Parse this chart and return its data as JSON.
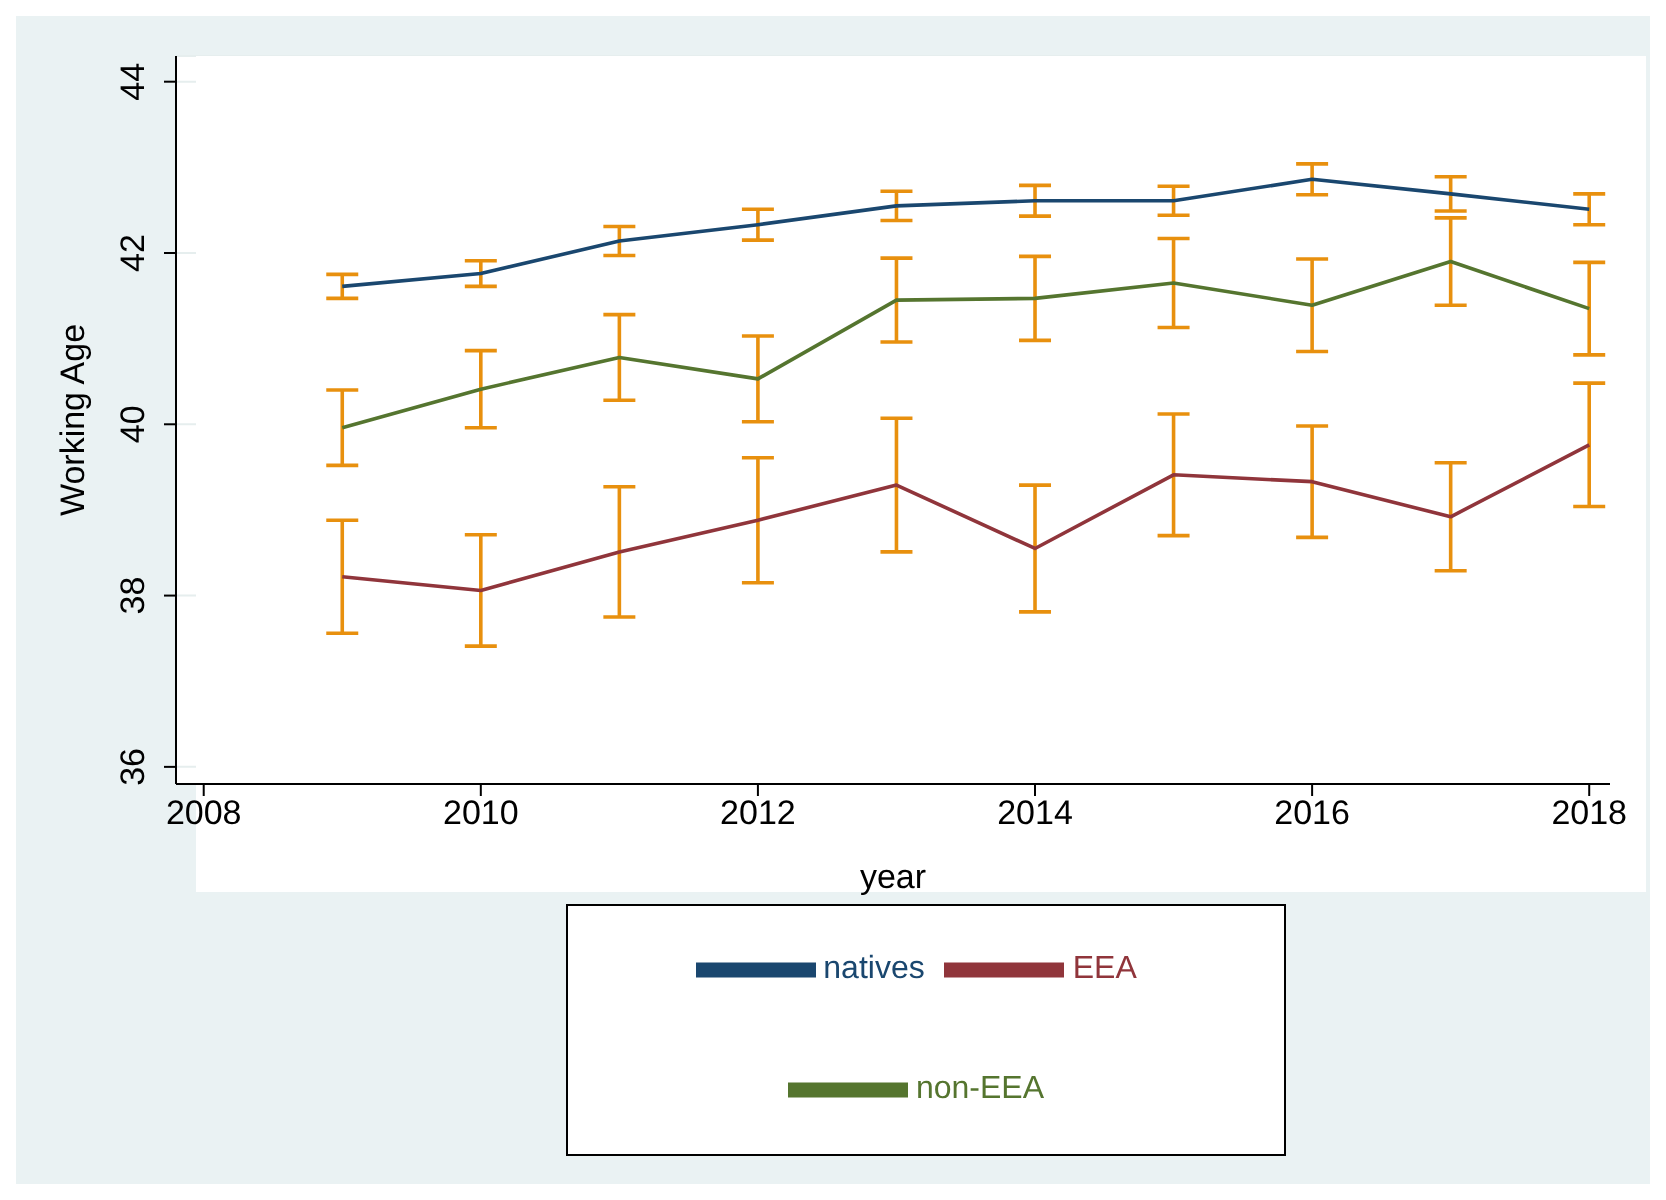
{
  "chart_data": {
    "type": "line",
    "xlabel": "year",
    "ylabel": "Working Age",
    "x": [
      2009,
      2010,
      2011,
      2012,
      2013,
      2014,
      2015,
      2016,
      2017,
      2018
    ],
    "series": [
      {
        "name": "natives",
        "color": "#1a476f",
        "values": [
          41.61,
          41.76,
          42.14,
          42.33,
          42.55,
          42.61,
          42.61,
          42.86,
          42.69,
          42.51
        ],
        "errors": [
          0.14,
          0.15,
          0.17,
          0.18,
          0.17,
          0.18,
          0.17,
          0.18,
          0.2,
          0.18
        ]
      },
      {
        "name": "EEA",
        "color": "#90353b",
        "values": [
          38.22,
          38.06,
          38.51,
          38.88,
          39.29,
          38.55,
          39.41,
          39.33,
          38.92,
          39.76
        ],
        "errors": [
          0.66,
          0.65,
          0.76,
          0.73,
          0.78,
          0.74,
          0.71,
          0.65,
          0.63,
          0.72
        ]
      },
      {
        "name": "non-EEA",
        "color": "#55752f",
        "values": [
          39.96,
          40.41,
          40.78,
          40.53,
          41.45,
          41.47,
          41.65,
          41.39,
          41.9,
          41.35
        ],
        "errors": [
          0.44,
          0.45,
          0.5,
          0.5,
          0.49,
          0.49,
          0.52,
          0.54,
          0.51,
          0.54
        ]
      }
    ],
    "xlim": [
      2007.8,
      2018.15
    ],
    "xticks": [
      2008,
      2010,
      2012,
      2014,
      2016,
      2018
    ],
    "ylim": [
      35.8,
      44.3
    ],
    "yticks": [
      36,
      38,
      40,
      42,
      44
    ],
    "grid": "y",
    "legend": "bottom",
    "marker": "none",
    "line_style": "solid"
  }
}
